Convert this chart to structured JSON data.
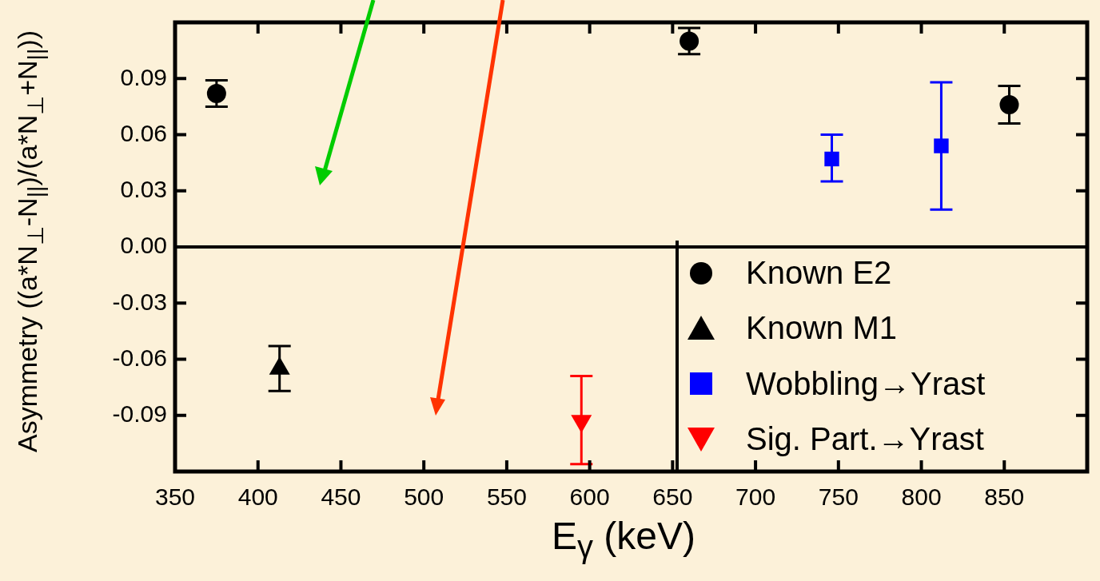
{
  "chart_data": {
    "type": "scatter",
    "xlabel": "E$_{γ}$ (keV)",
    "ylabel": "Asymmetry ((a*N$_{⊥}$-N$_{||}$)/(a*N$_{⊥}$+N$_{||}$))",
    "xlim": [
      350,
      900
    ],
    "xticks": [
      350,
      400,
      450,
      500,
      550,
      600,
      650,
      700,
      750,
      800,
      850,
      {
        "value": 900,
        "label": null
      }
    ],
    "ylim": [
      -0.12,
      0.12
    ],
    "yticks": [
      {
        "value": -0.12,
        "label": null
      },
      {
        "value": -0.09,
        "label": "-0.09"
      },
      {
        "value": -0.06,
        "label": "-0.06"
      },
      {
        "value": -0.03,
        "label": "-0.03"
      },
      {
        "value": 0,
        "label": "0.00"
      },
      {
        "value": 0.03,
        "label": "0.03"
      },
      {
        "value": 0.06,
        "label": "0.06"
      },
      {
        "value": 0.09,
        "label": "0.09"
      },
      {
        "value": 0.12,
        "label": null
      }
    ],
    "grid": false,
    "legend": "bottom right",
    "ref_lines": [
      {
        "axis": "y",
        "value": 0,
        "color": "#000000"
      }
    ],
    "series": [
      {
        "name": "Known E2",
        "color": "#000000",
        "marker": "circle",
        "x": [
          375,
          660,
          853
        ],
        "values": [
          0.082,
          0.11,
          0.076
        ],
        "errors": [
          [
            0.075,
            0.089
          ],
          [
            0.103,
            0.117
          ],
          [
            0.066,
            0.086
          ]
        ]
      },
      {
        "name": "Known M1",
        "color": "#000000",
        "marker": "triangle",
        "x": [
          413
        ],
        "values": [
          -0.065
        ],
        "errors": [
          [
            -0.077,
            -0.053
          ]
        ]
      },
      {
        "name": "Wobbling→Yrast",
        "color": "#0000ff",
        "marker": "square",
        "x": [
          746,
          812
        ],
        "values": [
          0.047,
          0.054
        ],
        "errors": [
          [
            0.035,
            0.06
          ],
          [
            0.02,
            0.088
          ]
        ]
      },
      {
        "name": "Sig. Part.→Yrast",
        "color": "#ff0000",
        "marker": "triangle-down",
        "x": [
          595
        ],
        "values": [
          -0.093
        ],
        "errors": [
          [
            -0.116,
            -0.069
          ]
        ]
      }
    ]
  }
}
